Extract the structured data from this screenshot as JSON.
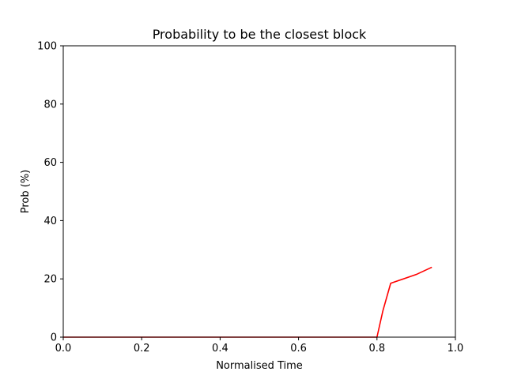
{
  "chart_data": {
    "type": "line",
    "title": "Probability to be the closest block",
    "xlabel": "Normalised Time",
    "ylabel": "Prob (%)",
    "xlim": [
      0.0,
      1.0
    ],
    "ylim": [
      0,
      100
    ],
    "xticks": [
      "0.0",
      "0.2",
      "0.4",
      "0.6",
      "0.8",
      "1.0"
    ],
    "yticks": [
      "0",
      "20",
      "40",
      "60",
      "80",
      "100"
    ],
    "grid": false,
    "legend": "none",
    "series": [
      {
        "color": "#ff0000",
        "x": [
          0.0,
          0.1,
          0.2,
          0.3,
          0.4,
          0.5,
          0.6,
          0.7,
          0.8,
          0.815,
          0.835,
          0.9,
          0.94
        ],
        "y": [
          0,
          0,
          0,
          0,
          0,
          0,
          0,
          0,
          0,
          9,
          18.5,
          21.5,
          24
        ]
      }
    ]
  }
}
